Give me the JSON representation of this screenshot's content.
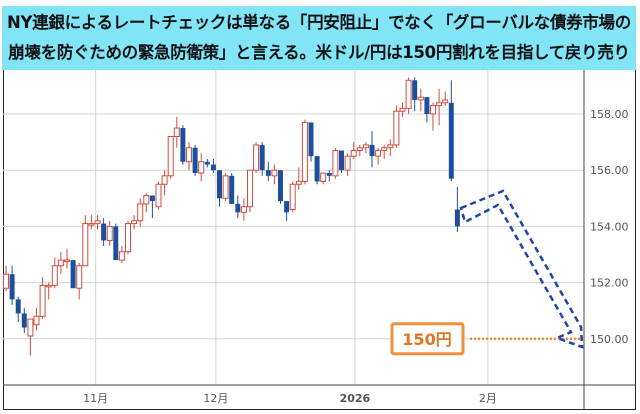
{
  "headline": {
    "line1": "NY連銀によるレートチェックは単なる「円安阻止」でなく「グローバルな債券市場の",
    "line2": "崩壊を防ぐための緊急防衛策」と言える。米ドル/円は150円割れを目指して戻り売り"
  },
  "chart_data": {
    "type": "candlestick",
    "ylim": [
      148.6,
      160.5
    ],
    "y_ticks": [
      "158.00",
      "156.00",
      "154.00",
      "152.00",
      "150.00"
    ],
    "y_tick_values": [
      158,
      156,
      154,
      152,
      150
    ],
    "x_ticks": [
      {
        "label": "11月",
        "index": 14.7
      },
      {
        "label": "12月",
        "index": 34.4
      },
      {
        "label": "2026",
        "index": 57.2
      },
      {
        "label": "2月",
        "index": 79
      }
    ],
    "ohlc": [
      [
        151.8,
        152.6,
        151.7,
        152.3
      ],
      [
        152.3,
        152.6,
        151.2,
        151.4
      ],
      [
        151.4,
        151.5,
        150.6,
        150.9
      ],
      [
        150.9,
        151.1,
        150.2,
        150.4
      ],
      [
        150.1,
        150.7,
        149.4,
        150.7
      ],
      [
        150.5,
        151.1,
        150.3,
        150.8
      ],
      [
        150.8,
        152.2,
        150.7,
        151.9
      ],
      [
        151.9,
        152.0,
        151.4,
        151.9
      ],
      [
        151.9,
        152.9,
        151.8,
        152.6
      ],
      [
        152.6,
        153.1,
        152.3,
        152.8
      ],
      [
        152.8,
        153.2,
        152.5,
        152.8
      ],
      [
        152.8,
        152.8,
        151.8,
        151.8
      ],
      [
        151.8,
        152.7,
        151.4,
        152.6
      ],
      [
        152.6,
        154.4,
        152.6,
        154.1
      ],
      [
        154.1,
        154.4,
        153.9,
        154.1
      ],
      [
        154.1,
        154.4,
        153.9,
        154.2
      ],
      [
        154.1,
        154.3,
        153.3,
        153.5
      ],
      [
        153.5,
        154.2,
        153.3,
        154.0
      ],
      [
        154.0,
        154.1,
        152.8,
        152.8
      ],
      [
        152.8,
        153.3,
        152.7,
        153.1
      ],
      [
        153.1,
        154.2,
        153.0,
        154.1
      ],
      [
        154.1,
        154.4,
        153.9,
        154.2
      ],
      [
        154.2,
        155.0,
        154.0,
        154.8
      ],
      [
        154.8,
        155.2,
        154.5,
        155.1
      ],
      [
        155.1,
        155.1,
        154.3,
        154.9
      ],
      [
        154.7,
        155.6,
        154.6,
        155.5
      ],
      [
        155.5,
        156.0,
        155.1,
        155.8
      ],
      [
        155.8,
        157.2,
        155.7,
        157.2
      ],
      [
        157.2,
        157.9,
        156.8,
        157.5
      ],
      [
        157.5,
        157.6,
        156.2,
        156.3
      ],
      [
        156.3,
        157.0,
        156.0,
        156.8
      ],
      [
        156.8,
        156.9,
        155.8,
        155.9
      ],
      [
        155.9,
        156.6,
        155.6,
        156.3
      ],
      [
        156.3,
        156.4,
        156.1,
        156.2
      ],
      [
        156.2,
        156.4,
        155.9,
        156.0
      ],
      [
        156.0,
        156.0,
        154.7,
        155.0
      ],
      [
        155.0,
        155.9,
        154.9,
        155.8
      ],
      [
        155.8,
        155.9,
        154.8,
        154.8
      ],
      [
        154.8,
        155.1,
        154.3,
        154.5
      ],
      [
        154.5,
        155.0,
        154.2,
        154.7
      ],
      [
        154.7,
        156.0,
        154.5,
        156.0
      ],
      [
        156.0,
        157.0,
        155.9,
        156.9
      ],
      [
        156.9,
        157.0,
        155.8,
        156.0
      ],
      [
        156.0,
        156.3,
        155.6,
        155.8
      ],
      [
        155.8,
        156.2,
        155.5,
        156.0
      ],
      [
        156.0,
        156.0,
        154.8,
        154.9
      ],
      [
        154.9,
        154.9,
        154.2,
        154.5
      ],
      [
        154.6,
        155.6,
        154.5,
        155.5
      ],
      [
        155.5,
        156.1,
        155.3,
        155.6
      ],
      [
        155.6,
        157.8,
        155.5,
        157.7
      ],
      [
        157.7,
        157.7,
        156.3,
        156.5
      ],
      [
        156.5,
        156.5,
        155.5,
        155.6
      ],
      [
        155.6,
        155.9,
        155.5,
        155.9
      ],
      [
        155.9,
        156.0,
        155.6,
        155.8
      ],
      [
        155.8,
        156.8,
        155.7,
        156.7
      ],
      [
        156.7,
        156.7,
        155.9,
        156.0
      ],
      [
        156.0,
        156.6,
        155.8,
        156.5
      ],
      [
        156.5,
        157.0,
        156.4,
        156.7
      ],
      [
        156.7,
        156.9,
        156.5,
        156.8
      ],
      [
        156.8,
        157.0,
        156.6,
        156.9
      ],
      [
        156.9,
        157.4,
        156.1,
        156.5
      ],
      [
        156.5,
        156.8,
        156.2,
        156.7
      ],
      [
        156.7,
        156.9,
        156.4,
        156.8
      ],
      [
        156.8,
        157.1,
        156.5,
        156.9
      ],
      [
        156.9,
        158.3,
        156.8,
        158.1
      ],
      [
        158.1,
        158.4,
        157.9,
        158.2
      ],
      [
        158.2,
        159.3,
        158.0,
        159.2
      ],
      [
        159.2,
        159.3,
        158.1,
        158.5
      ],
      [
        158.5,
        158.9,
        158.1,
        158.6
      ],
      [
        158.6,
        158.6,
        157.7,
        158.0
      ],
      [
        158.0,
        158.4,
        157.4,
        158.3
      ],
      [
        158.3,
        158.9,
        157.6,
        158.4
      ],
      [
        158.4,
        158.8,
        158.3,
        158.5
      ],
      [
        158.4,
        159.2,
        155.6,
        155.7
      ],
      [
        154.6,
        155.4,
        153.8,
        154.0
      ]
    ],
    "annotation": {
      "label": "150円",
      "level": 150
    },
    "colors": {
      "up": "#d24b3e",
      "down": "#1d4f9c",
      "target": "#f0903a",
      "arrow": "#1f47a8",
      "header": "#82e5f7"
    }
  }
}
